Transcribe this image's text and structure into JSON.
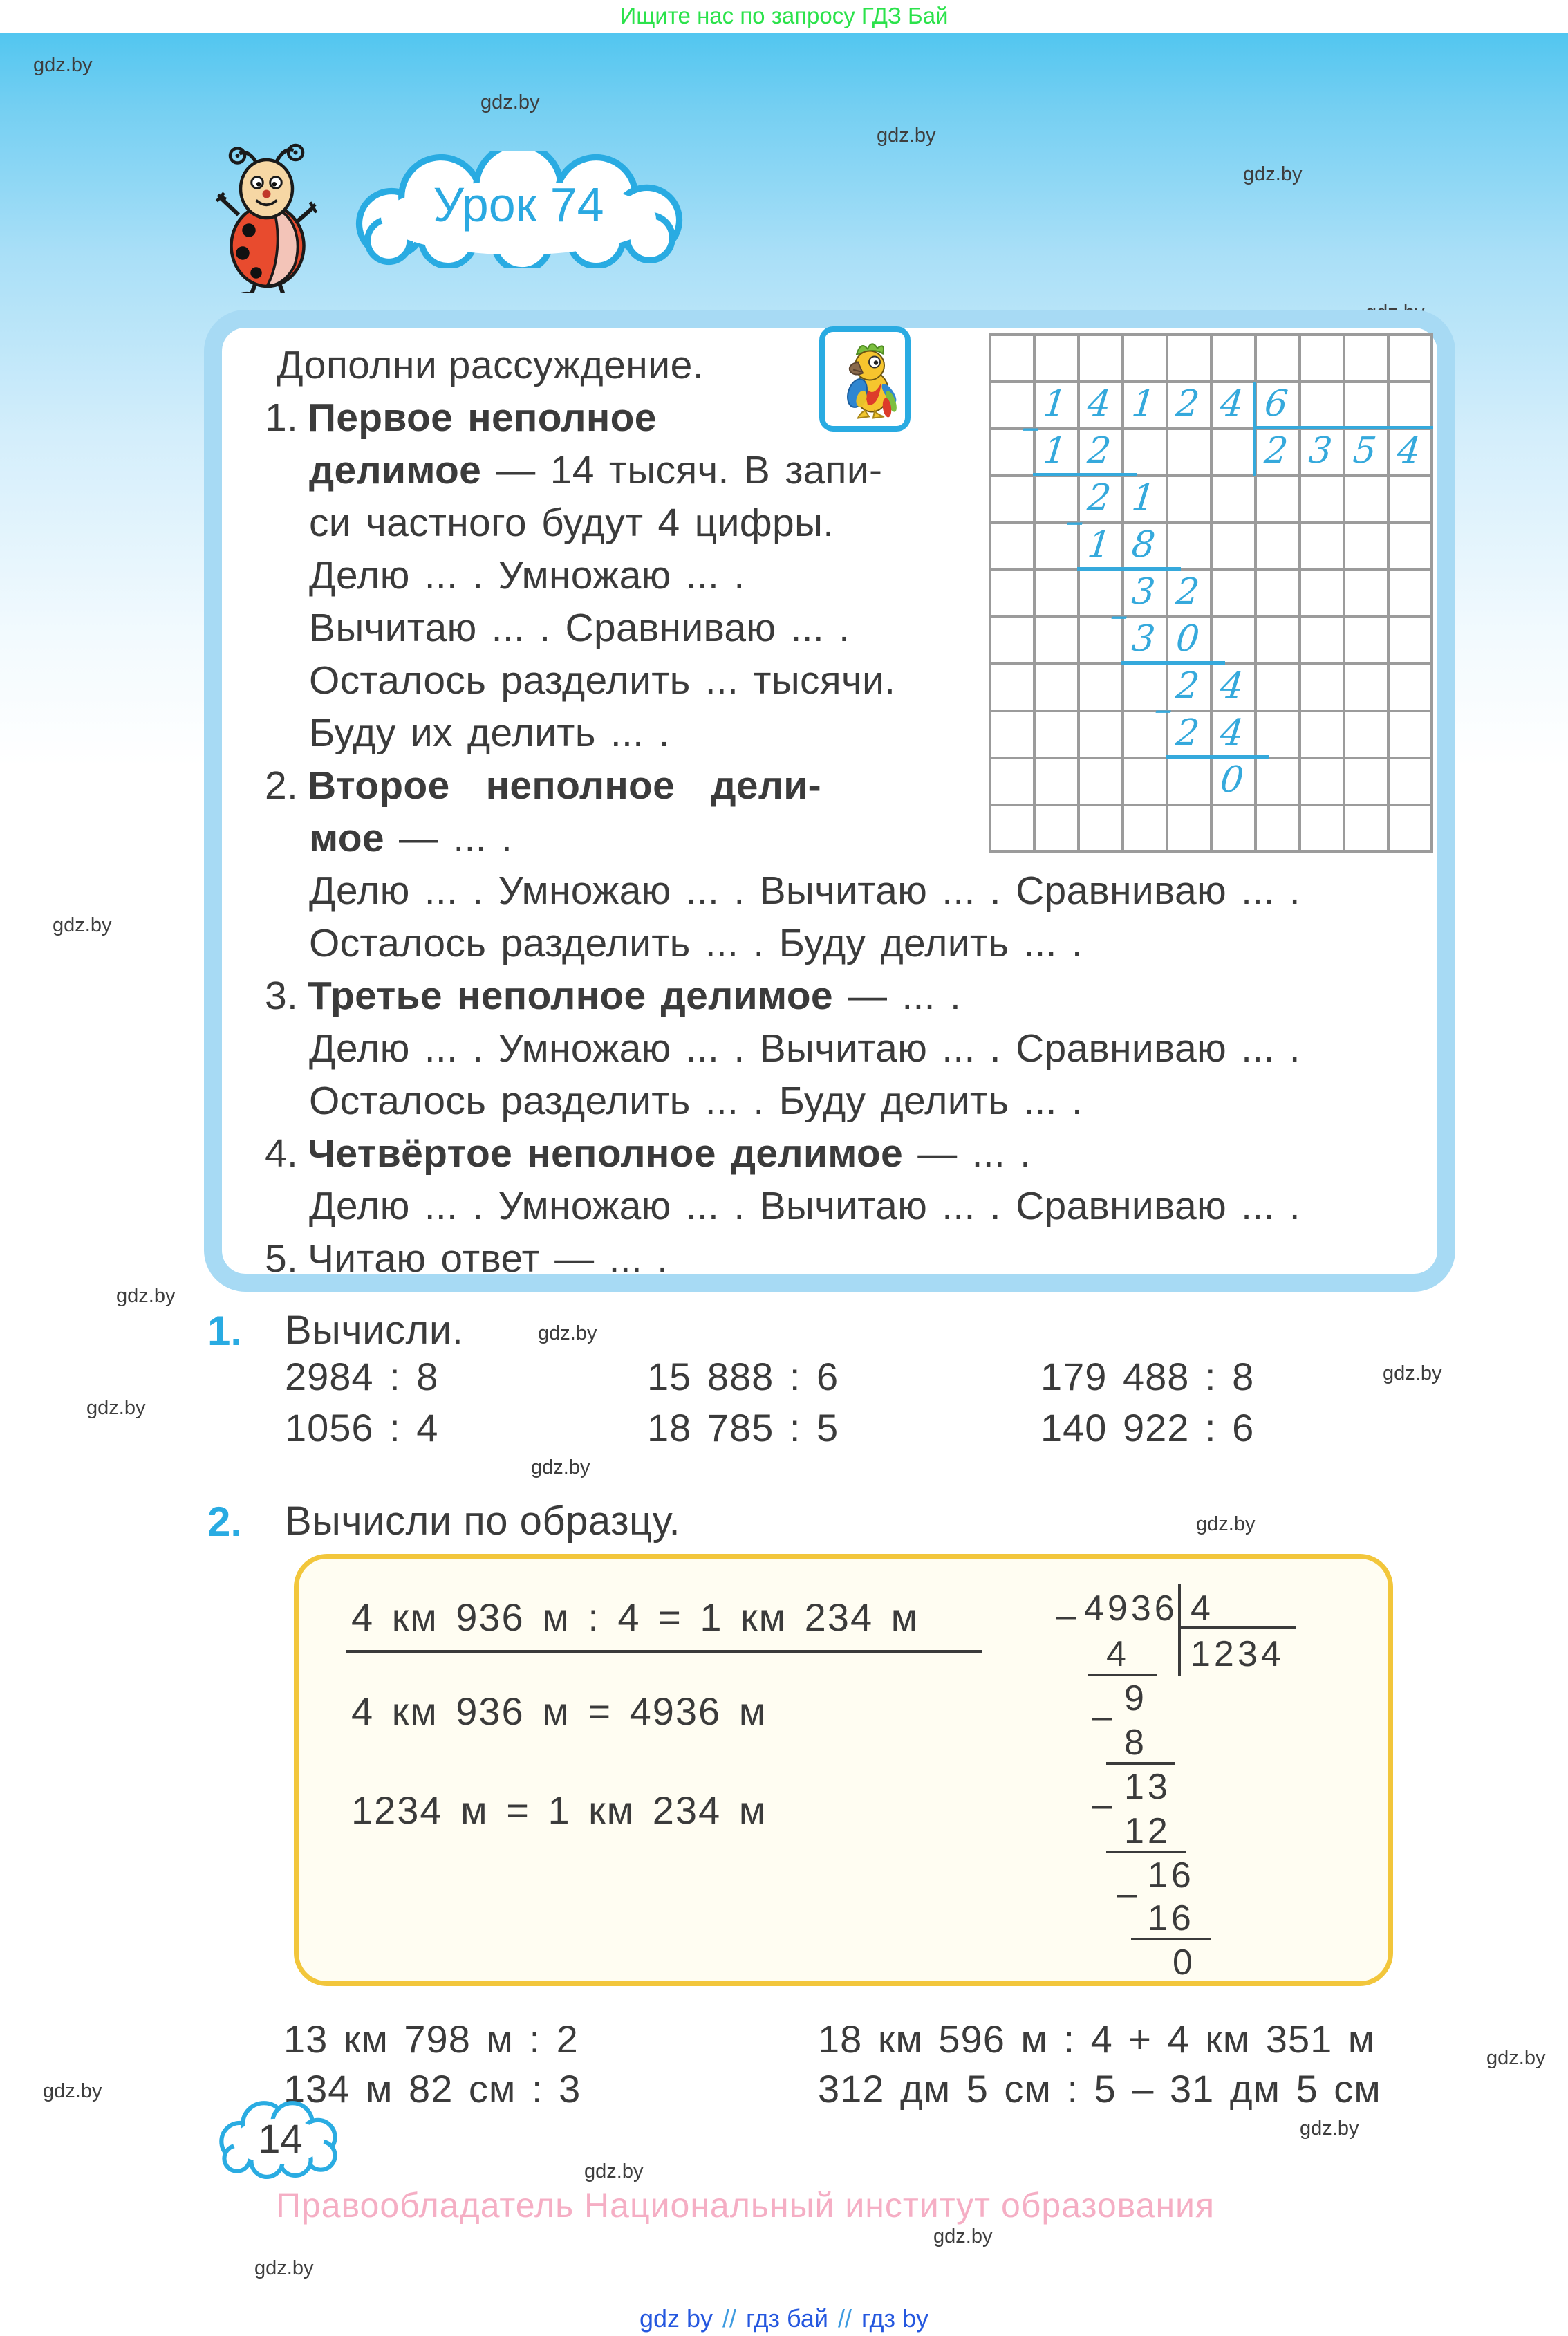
{
  "page": {
    "promo": "Ищите нас по запросу ГДЗ Бай",
    "watermark": "gdz.by",
    "lesson_title": "Урок 74",
    "page_number": "14",
    "footer": "Правообладатель Национальный институт образования",
    "links": {
      "a": "gdz by",
      "sep1": "//",
      "b": "гдз бай",
      "sep2": "//",
      "c": "гдз by"
    }
  },
  "reasoning_box": {
    "title": "Дополни рассуждение.",
    "lines": [
      {
        "n": "1.",
        "b": "Первое неполное",
        "t": ""
      },
      {
        "n": "",
        "b": "делимое",
        "t": " — 14 тысяч. В запи-"
      },
      {
        "n": "",
        "b": "",
        "t": "си частного будут 4 цифры."
      },
      {
        "n": "",
        "b": "",
        "t": "Делю ... . Умножаю ... ."
      },
      {
        "n": "",
        "b": "",
        "t": "Вычитаю ... . Сравниваю ... ."
      },
      {
        "n": "",
        "b": "",
        "t": "Осталось разделить ... тысячи."
      },
      {
        "n": "",
        "b": "",
        "t": "Буду их делить ... ."
      },
      {
        "n": "2.",
        "b": "Второе неполное дели-",
        "t": ""
      },
      {
        "n": "",
        "b": "мое",
        "t": " — ... ."
      },
      {
        "n": "",
        "b": "",
        "t": "Делю ... . Умножаю ... . Вычитаю ... . Сравниваю ... ."
      },
      {
        "n": "",
        "b": "",
        "t": "Осталось разделить ... . Буду делить ... ."
      },
      {
        "n": "3.",
        "b": "Третье неполное делимое",
        "t": " — ... ."
      },
      {
        "n": "",
        "b": "",
        "t": "Делю ... . Умножаю ... . Вычитаю ... . Сравниваю ... ."
      },
      {
        "n": "",
        "b": "",
        "t": "Осталось разделить ... . Буду делить ... ."
      },
      {
        "n": "4.",
        "b": "Четвёртое неполное делимое",
        "t": " — ... ."
      },
      {
        "n": "",
        "b": "",
        "t": "Делю ... . Умножаю ... . Вычитаю ... . Сравниваю ... ."
      },
      {
        "n": "5.",
        "b": "",
        "t": "Читаю ответ — ... ."
      }
    ]
  },
  "division_grid": {
    "dividend": "14124",
    "divisor": "6",
    "quotient": "2354",
    "cells": [
      {
        "c": 2,
        "r": 2,
        "ch": "1"
      },
      {
        "c": 3,
        "r": 2,
        "ch": "4"
      },
      {
        "c": 4,
        "r": 2,
        "ch": "1"
      },
      {
        "c": 5,
        "r": 2,
        "ch": "2"
      },
      {
        "c": 6,
        "r": 2,
        "ch": "4"
      },
      {
        "c": 7,
        "r": 2,
        "ch": "6"
      },
      {
        "c": 1.45,
        "r": 2.5,
        "ch": "–"
      },
      {
        "c": 2,
        "r": 3,
        "ch": "1"
      },
      {
        "c": 3,
        "r": 3,
        "ch": "2"
      },
      {
        "c": 7,
        "r": 3,
        "ch": "2"
      },
      {
        "c": 8,
        "r": 3,
        "ch": "3"
      },
      {
        "c": 9,
        "r": 3,
        "ch": "5"
      },
      {
        "c": 10,
        "r": 3,
        "ch": "4"
      },
      {
        "c": 3,
        "r": 4,
        "ch": "2"
      },
      {
        "c": 4,
        "r": 4,
        "ch": "1"
      },
      {
        "c": 2.45,
        "r": 4.5,
        "ch": "–"
      },
      {
        "c": 3,
        "r": 5,
        "ch": "1"
      },
      {
        "c": 4,
        "r": 5,
        "ch": "8"
      },
      {
        "c": 4,
        "r": 6,
        "ch": "3"
      },
      {
        "c": 5,
        "r": 6,
        "ch": "2"
      },
      {
        "c": 3.45,
        "r": 6.5,
        "ch": "–"
      },
      {
        "c": 4,
        "r": 7,
        "ch": "3"
      },
      {
        "c": 5,
        "r": 7,
        "ch": "0"
      },
      {
        "c": 5,
        "r": 8,
        "ch": "2"
      },
      {
        "c": 6,
        "r": 8,
        "ch": "4"
      },
      {
        "c": 4.45,
        "r": 8.5,
        "ch": "–"
      },
      {
        "c": 5,
        "r": 9,
        "ch": "2"
      },
      {
        "c": 6,
        "r": 9,
        "ch": "4"
      },
      {
        "c": 6,
        "r": 10,
        "ch": "0"
      }
    ]
  },
  "task1": {
    "num": "1.",
    "title": "Вычисли.",
    "problems": [
      "2984 : 8",
      "15 888 : 6",
      "179 488 : 8",
      "1056 : 4",
      "18 785 : 5",
      "140 922 : 6"
    ]
  },
  "task2": {
    "num": "2.",
    "title": "Вычисли по образцу.",
    "example": {
      "line1": "4 км 936 м : 4 = 1 км 234 м",
      "line2": "4 км 936 м = 4936 м",
      "line3": "1234 м = 1 км 234 м"
    },
    "division": {
      "minus": "–",
      "minuend": "4936",
      "divisor": "4",
      "quotient": "1234",
      "s1": "4",
      "s2": "9",
      "s3": "8",
      "s4": "13",
      "s5": "12",
      "s6": "16",
      "s7": "16",
      "s8": "0"
    },
    "problems": {
      "left1": "13 км 798 м : 2",
      "left2": "134 м 82 см : 3",
      "right1": "18 км 596 м : 4 + 4 км 351 м",
      "right2": "312 дм 5 см : 5 – 31 дм 5 см"
    }
  }
}
